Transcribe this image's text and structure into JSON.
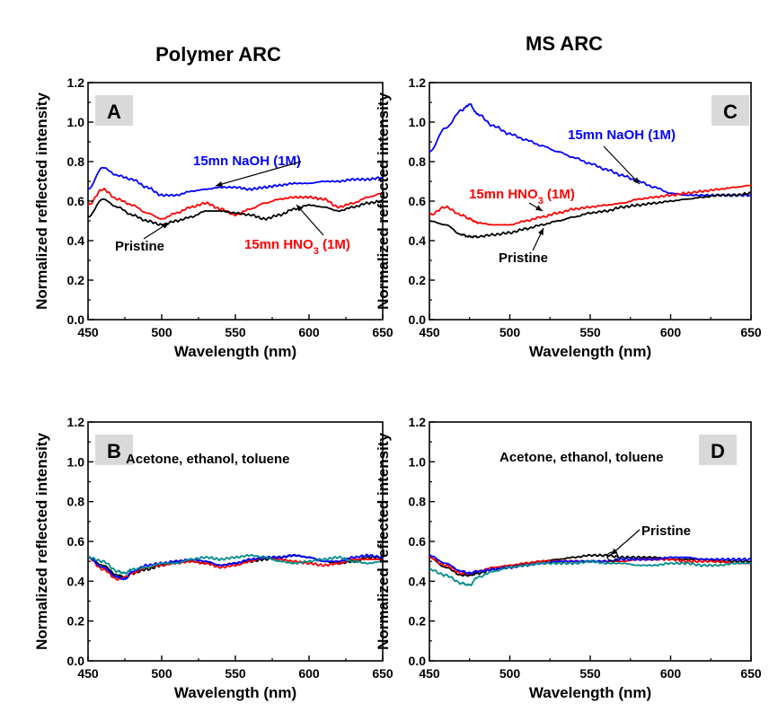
{
  "figure": {
    "column_titles": [
      "Polymer ARC",
      "MS ARC"
    ]
  },
  "chart_data": [
    {
      "type": "line",
      "panel": "A",
      "xlabel": "Wavelength (nm)",
      "ylabel": "Normalized reflected intensity",
      "xlim": [
        450,
        650
      ],
      "ylim": [
        0.0,
        1.2
      ],
      "xticks": [
        "450",
        "500",
        "550",
        "600",
        "650"
      ],
      "yticks": [
        "0.0",
        "0.2",
        "0.4",
        "0.6",
        "0.8",
        "1.0",
        "1.2"
      ],
      "x": [
        450,
        460,
        470,
        480,
        490,
        500,
        510,
        520,
        530,
        540,
        550,
        560,
        570,
        580,
        590,
        600,
        610,
        620,
        630,
        640,
        650
      ],
      "series": [
        {
          "name": "15mn NaOH (1M)",
          "color": "#0000ff",
          "values": [
            0.66,
            0.77,
            0.73,
            0.71,
            0.67,
            0.63,
            0.63,
            0.65,
            0.66,
            0.67,
            0.67,
            0.66,
            0.67,
            0.68,
            0.69,
            0.69,
            0.7,
            0.7,
            0.71,
            0.71,
            0.72
          ]
        },
        {
          "name": "15mn HNO3 (1M)",
          "color": "#ff0000",
          "values": [
            0.58,
            0.66,
            0.61,
            0.58,
            0.54,
            0.51,
            0.54,
            0.57,
            0.59,
            0.56,
            0.53,
            0.56,
            0.59,
            0.61,
            0.62,
            0.62,
            0.61,
            0.57,
            0.59,
            0.62,
            0.64
          ]
        },
        {
          "name": "Pristine",
          "color": "#000000",
          "values": [
            0.52,
            0.61,
            0.57,
            0.53,
            0.5,
            0.48,
            0.5,
            0.52,
            0.55,
            0.55,
            0.54,
            0.53,
            0.51,
            0.53,
            0.56,
            0.58,
            0.57,
            0.55,
            0.57,
            0.59,
            0.6
          ]
        }
      ],
      "annotations": [
        {
          "segments": [
            "15mn NaOH (1M)"
          ],
          "color": "#0000ff"
        },
        {
          "segments": [
            "15mn HNO",
            "3",
            " (1M)"
          ],
          "color": "#ff0000"
        },
        {
          "segments": [
            "Pristine"
          ],
          "color": "#000000"
        }
      ]
    },
    {
      "type": "line",
      "panel": "C",
      "xlabel": "Wavelength (nm)",
      "ylabel": "Normalized reflected intensity",
      "xlim": [
        450,
        650
      ],
      "ylim": [
        0.0,
        1.2
      ],
      "xticks": [
        "450",
        "500",
        "550",
        "600",
        "650"
      ],
      "yticks": [
        "0.0",
        "0.2",
        "0.4",
        "0.6",
        "0.8",
        "1.0",
        "1.2"
      ],
      "x": [
        450,
        460,
        470,
        475,
        480,
        490,
        500,
        510,
        520,
        530,
        540,
        550,
        560,
        570,
        580,
        590,
        600,
        610,
        620,
        630,
        640,
        650
      ],
      "series": [
        {
          "name": "15mn NaOH (1M)",
          "color": "#0000ff",
          "values": [
            0.85,
            0.97,
            1.06,
            1.09,
            1.04,
            0.98,
            0.94,
            0.91,
            0.88,
            0.85,
            0.82,
            0.79,
            0.76,
            0.73,
            0.7,
            0.67,
            0.64,
            0.63,
            0.63,
            0.63,
            0.63,
            0.63
          ]
        },
        {
          "name": "15mn HNO3 (1M)",
          "color": "#ff0000",
          "values": [
            0.53,
            0.57,
            0.53,
            0.51,
            0.49,
            0.48,
            0.48,
            0.5,
            0.52,
            0.54,
            0.56,
            0.57,
            0.58,
            0.59,
            0.61,
            0.62,
            0.63,
            0.64,
            0.65,
            0.66,
            0.67,
            0.68
          ]
        },
        {
          "name": "Pristine",
          "color": "#000000",
          "values": [
            0.5,
            0.48,
            0.43,
            0.42,
            0.42,
            0.43,
            0.44,
            0.46,
            0.48,
            0.5,
            0.52,
            0.54,
            0.55,
            0.57,
            0.58,
            0.59,
            0.6,
            0.61,
            0.62,
            0.63,
            0.63,
            0.64
          ]
        }
      ],
      "annotations": [
        {
          "segments": [
            "15mn NaOH (1M)"
          ],
          "color": "#0000ff"
        },
        {
          "segments": [
            "15mn HNO",
            "3",
            " (1M)"
          ],
          "color": "#ff0000"
        },
        {
          "segments": [
            "Pristine"
          ],
          "color": "#000000"
        }
      ]
    },
    {
      "type": "line",
      "panel": "B",
      "xlabel": "Wavelength (nm)",
      "ylabel": "Normalized reflected intensity",
      "xlim": [
        450,
        650
      ],
      "ylim": [
        0.0,
        1.2
      ],
      "xticks": [
        "450",
        "500",
        "550",
        "600",
        "650"
      ],
      "yticks": [
        "0.0",
        "0.2",
        "0.4",
        "0.6",
        "0.8",
        "1.0",
        "1.2"
      ],
      "x": [
        450,
        460,
        470,
        475,
        480,
        490,
        500,
        510,
        520,
        530,
        540,
        550,
        560,
        570,
        580,
        590,
        600,
        610,
        620,
        630,
        640,
        650
      ],
      "series": [
        {
          "color": "#000000",
          "values": [
            0.52,
            0.48,
            0.43,
            0.42,
            0.44,
            0.46,
            0.48,
            0.5,
            0.5,
            0.49,
            0.48,
            0.49,
            0.5,
            0.51,
            0.52,
            0.53,
            0.52,
            0.5,
            0.49,
            0.5,
            0.52,
            0.52
          ]
        },
        {
          "color": "#ff0000",
          "values": [
            0.52,
            0.46,
            0.41,
            0.42,
            0.44,
            0.47,
            0.48,
            0.49,
            0.5,
            0.49,
            0.47,
            0.48,
            0.5,
            0.52,
            0.51,
            0.5,
            0.49,
            0.48,
            0.49,
            0.51,
            0.51,
            0.51
          ]
        },
        {
          "color": "#0000ff",
          "values": [
            0.52,
            0.47,
            0.42,
            0.41,
            0.45,
            0.48,
            0.49,
            0.5,
            0.51,
            0.5,
            0.48,
            0.49,
            0.51,
            0.52,
            0.52,
            0.53,
            0.52,
            0.5,
            0.5,
            0.52,
            0.53,
            0.52
          ]
        },
        {
          "color": "#008b8b",
          "values": [
            0.52,
            0.5,
            0.45,
            0.44,
            0.46,
            0.47,
            0.49,
            0.49,
            0.51,
            0.52,
            0.51,
            0.52,
            0.53,
            0.52,
            0.5,
            0.49,
            0.5,
            0.51,
            0.52,
            0.5,
            0.49,
            0.5
          ]
        }
      ],
      "annotations": [
        {
          "segments": [
            "Acetone, ethanol, toluene"
          ],
          "color": "#000000"
        }
      ]
    },
    {
      "type": "line",
      "panel": "D",
      "xlabel": "Wavelength (nm)",
      "ylabel": "Normalized reflected intensity",
      "xlim": [
        450,
        650
      ],
      "ylim": [
        0.0,
        1.2
      ],
      "xticks": [
        "450",
        "500",
        "550",
        "600",
        "650"
      ],
      "yticks": [
        "0.0",
        "0.2",
        "0.4",
        "0.6",
        "0.8",
        "1.0",
        "1.2"
      ],
      "x": [
        450,
        460,
        470,
        475,
        480,
        490,
        500,
        510,
        520,
        530,
        540,
        550,
        560,
        570,
        580,
        590,
        600,
        610,
        620,
        630,
        640,
        650
      ],
      "series": [
        {
          "name": "Pristine",
          "color": "#000000",
          "values": [
            0.52,
            0.47,
            0.43,
            0.43,
            0.44,
            0.46,
            0.47,
            0.49,
            0.5,
            0.51,
            0.52,
            0.53,
            0.53,
            0.52,
            0.52,
            0.52,
            0.51,
            0.51,
            0.51,
            0.5,
            0.5,
            0.5
          ]
        },
        {
          "color": "#ff0000",
          "values": [
            0.52,
            0.48,
            0.44,
            0.44,
            0.45,
            0.47,
            0.48,
            0.49,
            0.5,
            0.5,
            0.5,
            0.5,
            0.5,
            0.5,
            0.51,
            0.51,
            0.51,
            0.5,
            0.5,
            0.5,
            0.49,
            0.49
          ]
        },
        {
          "color": "#0000ff",
          "values": [
            0.53,
            0.49,
            0.45,
            0.44,
            0.45,
            0.46,
            0.47,
            0.48,
            0.49,
            0.5,
            0.5,
            0.5,
            0.5,
            0.51,
            0.51,
            0.51,
            0.52,
            0.52,
            0.51,
            0.51,
            0.51,
            0.51
          ]
        },
        {
          "color": "#008b8b",
          "values": [
            0.46,
            0.43,
            0.39,
            0.38,
            0.42,
            0.45,
            0.47,
            0.48,
            0.49,
            0.49,
            0.49,
            0.5,
            0.49,
            0.49,
            0.48,
            0.48,
            0.49,
            0.49,
            0.48,
            0.48,
            0.49,
            0.49
          ]
        }
      ],
      "annotations": [
        {
          "segments": [
            "Acetone, ethanol, toluene"
          ],
          "color": "#000000"
        },
        {
          "segments": [
            "Pristine"
          ],
          "color": "#000000"
        }
      ]
    }
  ]
}
